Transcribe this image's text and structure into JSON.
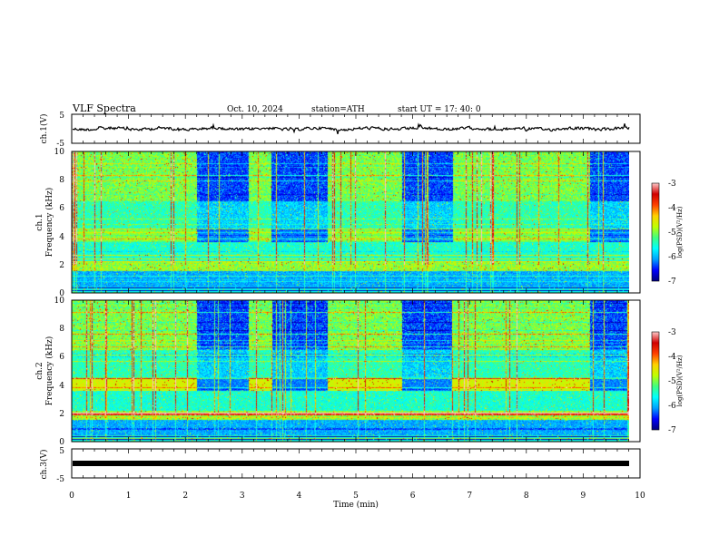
{
  "header": {
    "title": "VLF  Spectra",
    "date": "Oct. 10, 2024",
    "station": "station=ATH",
    "start": "start  UT  =   17: 40: 0"
  },
  "chart_data": [
    {
      "type": "line",
      "panel": "ch1-time-series",
      "ylabel": "ch.1(V)",
      "ylim": [
        -5,
        5
      ],
      "yticks": [
        "5",
        "-5"
      ],
      "xlim": [
        0,
        10
      ],
      "series_description": "noisy waveform oscillating around approx. 0 V"
    },
    {
      "type": "heatmap",
      "panel": "ch1-spectrogram",
      "ylabel_top": "ch.1",
      "ylabel": "Frequency  (kHz)",
      "ylim": [
        0,
        10
      ],
      "yticks": [
        "0",
        "2",
        "4",
        "6",
        "8",
        "10"
      ],
      "xlim": [
        0,
        10
      ],
      "colorbar": {
        "label": "log(PSD)(V²/Hz)",
        "ticks": [
          "-3",
          "-4",
          "-5",
          "-6",
          "-7"
        ],
        "range": [
          -7,
          -3
        ]
      }
    },
    {
      "type": "heatmap",
      "panel": "ch2-spectrogram",
      "ylabel_top": "ch.2",
      "ylabel": "Frequency  (kHz)",
      "ylim": [
        0,
        10
      ],
      "yticks": [
        "0",
        "2",
        "4",
        "6",
        "8",
        "10"
      ],
      "xlim": [
        0,
        10
      ],
      "colorbar": {
        "label": "log(PSD)(V²/Hz)",
        "ticks": [
          "-3",
          "-4",
          "-5",
          "-6",
          "-7"
        ],
        "range": [
          -7,
          -3
        ]
      }
    },
    {
      "type": "line",
      "panel": "ch3-time-series",
      "ylabel": "ch.3(V)",
      "ylim": [
        -5,
        5
      ],
      "yticks": [
        "5",
        "-5"
      ],
      "xlim": [
        0,
        10
      ],
      "xticks": [
        "0",
        "1",
        "2",
        "3",
        "4",
        "5",
        "6",
        "7",
        "8",
        "9",
        "10"
      ],
      "xlabel": "Time  (min)",
      "series_description": "flat thick line at approx. -1 V"
    }
  ],
  "colors": {
    "axis": "#000000",
    "colormap": [
      "#00007a",
      "#0000ff",
      "#00a0ff",
      "#00ffff",
      "#40ff80",
      "#c0ff00",
      "#ffd000",
      "#ff4000",
      "#d00000",
      "#ffc8c8"
    ]
  }
}
